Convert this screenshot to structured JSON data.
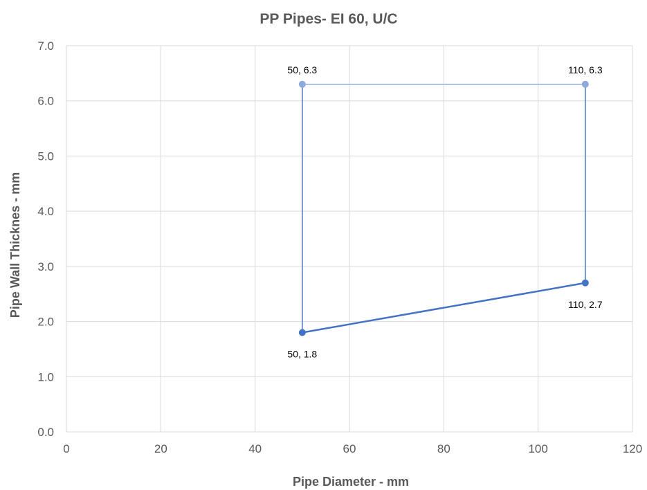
{
  "chart_data": {
    "type": "scatter",
    "title": "PP Pipes- EI 60, U/C",
    "xlabel": "Pipe Diameter - mm",
    "ylabel": "Pipe Wall Thicknes - mm",
    "xlim": [
      0,
      120
    ],
    "ylim": [
      0,
      7
    ],
    "x_ticks": [
      0,
      20,
      40,
      60,
      80,
      100,
      120
    ],
    "y_ticks": [
      0,
      1,
      2,
      3,
      4,
      5,
      6,
      7
    ],
    "x_tick_labels": [
      "0",
      "20",
      "40",
      "60",
      "80",
      "100",
      "120"
    ],
    "y_tick_labels": [
      "0.0",
      "1.0",
      "2.0",
      "3.0",
      "4.0",
      "5.0",
      "6.0",
      "7.0"
    ],
    "grid": true,
    "series": [
      {
        "color": "#4472c4",
        "line_width": 2.5,
        "points": [
          {
            "x": 50,
            "y": 1.8,
            "label": "50, 1.8",
            "label_pos": "below"
          },
          {
            "x": 110,
            "y": 2.7,
            "label": "110, 2.7",
            "label_pos": "below"
          }
        ]
      },
      {
        "color": "#8faadc",
        "line_width": 1.5,
        "points": [
          {
            "x": 50,
            "y": 6.3,
            "label": "50, 6.3",
            "label_pos": "above"
          },
          {
            "x": 110,
            "y": 6.3,
            "label": "110, 6.3",
            "label_pos": "above"
          }
        ]
      },
      {
        "color": "#4472c4",
        "line_width": 1.5,
        "points": [
          {
            "x": 50,
            "y": 1.8
          },
          {
            "x": 50,
            "y": 6.3
          }
        ]
      },
      {
        "color": "#4472c4",
        "line_width": 1.5,
        "points": [
          {
            "x": 110,
            "y": 2.7
          },
          {
            "x": 110,
            "y": 6.3
          }
        ]
      }
    ]
  }
}
